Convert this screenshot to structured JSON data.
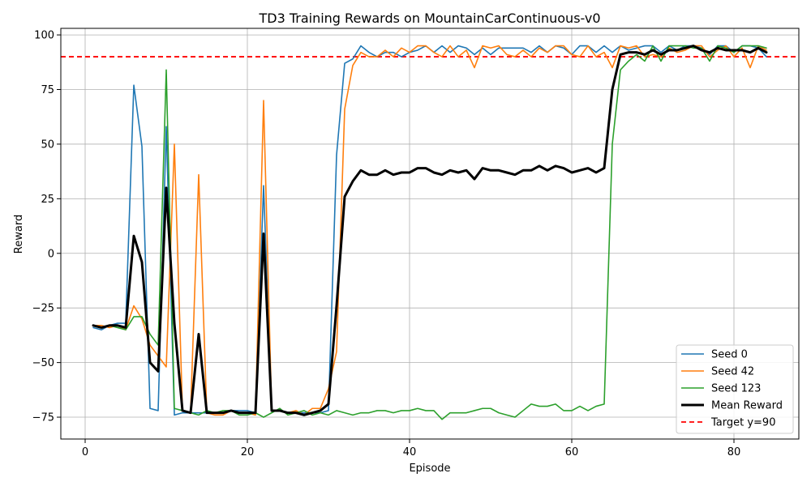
{
  "chart_data": {
    "type": "line",
    "title": "TD3 Training Rewards on MountainCarContinuous-v0",
    "xlabel": "Episode",
    "ylabel": "Reward",
    "xlim": [
      -3,
      88
    ],
    "ylim": [
      -85,
      103
    ],
    "xticks": [
      0,
      20,
      40,
      60,
      80
    ],
    "yticks": [
      -75,
      -50,
      -25,
      0,
      25,
      50,
      75,
      100
    ],
    "grid": true,
    "legend_position": "lower-right",
    "x": [
      1,
      2,
      3,
      4,
      5,
      6,
      7,
      8,
      9,
      10,
      11,
      12,
      13,
      14,
      15,
      16,
      17,
      18,
      19,
      20,
      21,
      22,
      23,
      24,
      25,
      26,
      27,
      28,
      29,
      30,
      31,
      32,
      33,
      34,
      35,
      36,
      37,
      38,
      39,
      40,
      41,
      42,
      43,
      44,
      45,
      46,
      47,
      48,
      49,
      50,
      51,
      52,
      53,
      54,
      55,
      56,
      57,
      58,
      59,
      60,
      61,
      62,
      63,
      64,
      65,
      66,
      67,
      68,
      69,
      70,
      71,
      72,
      73,
      74,
      75,
      76,
      77,
      78,
      79,
      80,
      81,
      82,
      83,
      84
    ],
    "series": [
      {
        "name": "Seed 0",
        "color": "#1f77b4",
        "width": 1.6,
        "values": [
          -34,
          -35,
          -33,
          -32,
          -32,
          77,
          49,
          -71,
          -72,
          58,
          -74,
          -73,
          -73,
          -73,
          -73,
          -73,
          -73,
          -72,
          -72,
          -72,
          -73,
          31,
          -72,
          -72,
          -73,
          -73,
          -73,
          -73,
          -73,
          -72,
          45,
          87,
          89,
          95,
          92,
          90,
          92,
          92,
          90,
          92,
          93,
          95,
          92,
          95,
          92,
          95,
          94,
          91,
          94,
          91,
          94,
          94,
          94,
          94,
          92,
          95,
          92,
          95,
          94,
          91,
          95,
          95,
          92,
          95,
          92,
          95,
          93,
          94,
          95,
          95,
          92,
          95,
          93,
          95,
          95,
          94,
          91,
          95,
          95,
          92,
          95,
          95,
          94,
          90
        ],
        "vstroke": [
          2,
          2,
          2,
          2,
          2,
          2,
          2,
          2,
          2,
          2,
          2,
          2,
          2,
          2,
          2,
          2,
          2,
          2,
          2,
          2,
          2,
          2,
          2,
          2,
          2,
          2,
          2,
          2,
          2,
          2,
          2,
          2,
          2,
          2,
          2,
          2,
          2,
          2,
          2,
          2,
          2,
          2,
          2,
          2,
          2,
          2,
          2,
          2,
          2,
          2,
          2,
          2,
          2,
          2,
          2,
          2,
          2,
          2,
          2,
          2,
          2,
          2,
          2,
          2,
          2,
          2,
          2,
          2,
          2,
          2,
          2,
          2,
          2,
          2,
          2,
          2,
          2,
          2,
          2,
          2,
          2,
          2,
          2,
          2
        ]
      },
      {
        "name": "Seed 42",
        "color": "#ff7f0e",
        "width": 1.6,
        "values": [
          -33,
          -33,
          -34,
          -33,
          -35,
          -24,
          -30,
          -42,
          -47,
          -52,
          50,
          -72,
          -73,
          36,
          -73,
          -74,
          -74,
          -72,
          -73,
          -73,
          -74,
          70,
          -72,
          -72,
          -73,
          -72,
          -74,
          -71,
          -71,
          -62,
          -45,
          66,
          86,
          92,
          90,
          90,
          93,
          90,
          94,
          92,
          95,
          95,
          92,
          90,
          95,
          90,
          93,
          85,
          95,
          94,
          95,
          91,
          90,
          93,
          90,
          94,
          92,
          95,
          95,
          91,
          90,
          95,
          90,
          92,
          85,
          95,
          94,
          95,
          90,
          91,
          90,
          94,
          92,
          93,
          95,
          95,
          90,
          93,
          95,
          90,
          94,
          85,
          95,
          93
        ],
        "vstroke": [
          2,
          2,
          2,
          2,
          2,
          2,
          2,
          2,
          2,
          2,
          2,
          2,
          2,
          2,
          2,
          2,
          2,
          2,
          2,
          2,
          2,
          2,
          2,
          2,
          2,
          2,
          2,
          2,
          2,
          2,
          2,
          2,
          2,
          2,
          2,
          2,
          2,
          2,
          2,
          2,
          2,
          2,
          2,
          2,
          2,
          2,
          2,
          2,
          2,
          2,
          2,
          2,
          2,
          2,
          2,
          2,
          2,
          2,
          2,
          2,
          2,
          2,
          2,
          2,
          2,
          2,
          2,
          2,
          2,
          2,
          2,
          2,
          2,
          2,
          2,
          2,
          2,
          2,
          2,
          2,
          2,
          2,
          2,
          2
        ]
      },
      {
        "name": "Seed 123",
        "color": "#2ca02c",
        "width": 1.6,
        "values": [
          -33,
          -34,
          -33,
          -34,
          -35,
          -29,
          -29,
          -37,
          -42,
          84,
          -71,
          -72,
          -73,
          -74,
          -72,
          -73,
          -72,
          -72,
          -74,
          -74,
          -73,
          -75,
          -73,
          -71,
          -74,
          -73,
          -72,
          -74,
          -73,
          -74,
          -72,
          -73,
          -74,
          -73,
          -73,
          -72,
          -72,
          -73,
          -72,
          -72,
          -71,
          -72,
          -72,
          -76,
          -73,
          -73,
          -73,
          -72,
          -71,
          -71,
          -73,
          -74,
          -75,
          -72,
          -69,
          -70,
          -70,
          -69,
          -72,
          -72,
          -70,
          -72,
          -70,
          -69,
          50,
          84,
          88,
          91,
          88,
          95,
          88,
          95,
          95,
          95,
          94,
          94,
          88,
          95,
          94,
          92,
          95,
          95,
          95,
          94
        ],
        "vstroke": [
          2,
          2,
          2,
          2,
          2,
          2,
          2,
          2,
          2,
          2,
          2,
          2,
          2,
          2,
          2,
          2,
          2,
          2,
          2,
          2,
          2,
          2,
          2,
          2,
          2,
          2,
          2,
          2,
          2,
          2,
          2,
          2,
          2,
          2,
          2,
          2,
          2,
          2,
          2,
          2,
          2,
          2,
          2,
          2,
          2,
          2,
          2,
          2,
          2,
          2,
          2,
          2,
          2,
          2,
          2,
          2,
          2,
          2,
          2,
          2,
          2,
          2,
          2,
          2,
          2,
          2,
          2,
          2,
          2,
          2,
          2,
          2,
          2,
          2,
          2,
          2,
          2,
          2,
          2,
          2,
          2,
          2,
          2,
          2
        ]
      },
      {
        "name": "Mean Reward",
        "color": "#000000",
        "width": 3,
        "values": [
          -33,
          -34,
          -33,
          -33,
          -34,
          8,
          -4,
          -50,
          -54,
          30,
          -32,
          -72,
          -73,
          -37,
          -73,
          -73,
          -73,
          -72,
          -73,
          -73,
          -73,
          9,
          -72,
          -72,
          -73,
          -73,
          -74,
          -73,
          -72,
          -69,
          -24,
          26,
          33,
          38,
          36,
          36,
          38,
          36,
          37,
          37,
          39,
          39,
          37,
          36,
          38,
          37,
          38,
          34,
          39,
          38,
          38,
          37,
          36,
          38,
          38,
          40,
          38,
          40,
          39,
          37,
          38,
          39,
          37,
          39,
          75,
          91,
          92,
          92,
          91,
          93,
          91,
          93,
          93,
          94,
          95,
          93,
          92,
          94,
          93,
          93,
          93,
          92,
          94,
          92
        ],
        "vstroke": [
          2,
          2,
          2,
          2,
          2,
          2,
          2,
          2,
          2,
          2,
          2,
          2,
          2,
          2,
          2,
          2,
          2,
          2,
          2,
          2,
          2,
          2,
          2,
          2,
          2,
          2,
          2,
          2,
          2,
          2,
          2,
          2,
          2,
          2,
          2,
          2,
          2,
          2,
          2,
          2,
          2,
          2,
          2,
          2,
          2,
          2,
          2,
          2,
          2,
          2,
          2,
          2,
          2,
          2,
          2,
          2,
          2,
          2,
          2,
          2,
          2,
          2,
          2,
          2,
          2,
          2,
          2,
          2,
          2,
          2,
          2,
          2,
          2,
          2,
          2,
          2,
          2,
          2,
          2,
          2,
          2,
          2,
          2,
          2
        ]
      }
    ],
    "reference_line": {
      "name": "Target y=90",
      "y": 90,
      "color": "#ff0000",
      "style": "dashed"
    }
  }
}
